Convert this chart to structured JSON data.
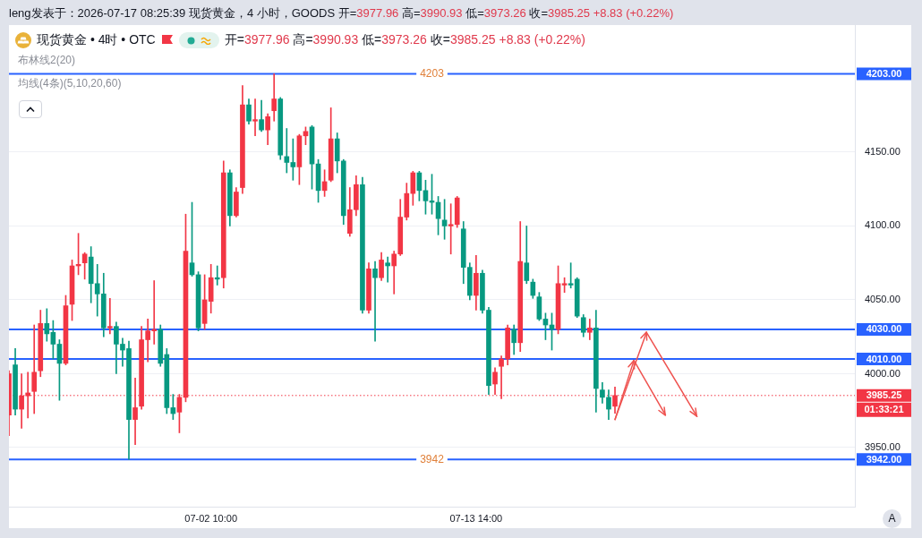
{
  "chart_data": {
    "type": "candlestick",
    "title": "现货黄金 • 4时 • OTC",
    "subtitle": "开=3977.96 高=3990.93 低=3973.26 收=3985.25 +8.83 (+0.22%)",
    "annotations": [
      "leng发表于：2026-07-17 08:25:39 现货黄金，4 小时，GOODS",
      "开=3977.96 高=3990.93 低=3973.26 收=3985.25 +8.83 (+0.22%)",
      "布林线2(20)",
      "均线(4条)(5,10,20,60)",
      "01:33:21",
      "A",
      {
        "text": "4203",
        "y": 4203
      },
      {
        "text": "3942",
        "y": 3942
      }
    ],
    "categories": [
      null,
      null,
      null,
      null,
      null,
      null,
      null,
      null,
      null,
      null,
      null,
      null,
      null,
      null,
      null,
      null,
      null,
      null,
      null,
      null,
      null,
      null,
      null,
      null,
      null,
      null,
      null,
      null,
      null,
      null,
      null,
      null,
      "07-02 10:00",
      null,
      null,
      null,
      null,
      null,
      null,
      null,
      null,
      null,
      null,
      null,
      null,
      null,
      null,
      null,
      null,
      null,
      null,
      null,
      null,
      null,
      null,
      null,
      null,
      null,
      null,
      null,
      null,
      null,
      null,
      null,
      null,
      null,
      null,
      null,
      null,
      null,
      null,
      null,
      null,
      null,
      "07-13 14:00",
      null,
      null,
      null,
      null,
      null,
      null,
      null,
      null,
      null,
      null,
      null,
      null,
      null,
      null,
      null,
      null,
      null,
      null,
      null,
      null,
      null,
      null,
      null,
      null,
      null,
      null,
      null,
      null,
      null,
      null,
      null,
      null,
      null,
      null,
      null,
      null,
      null,
      null,
      null,
      null,
      null,
      null,
      null,
      null,
      null,
      null,
      null,
      null,
      null,
      null,
      null,
      null,
      null,
      null,
      null,
      null,
      null,
      null,
      null,
      null
    ],
    "ohlc": [
      [
        3972,
        4002,
        3958,
        4000
      ],
      [
        4006,
        4017,
        3972,
        3976
      ],
      [
        3976,
        4000,
        3963,
        3985
      ],
      [
        3985,
        4001,
        3970,
        3987
      ],
      [
        3988,
        4033,
        3973,
        4001
      ],
      [
        4002,
        4043,
        3998,
        4034
      ],
      [
        4034,
        4044,
        4022,
        4027
      ],
      [
        4028,
        4036,
        4010,
        4020
      ],
      [
        4020,
        4023,
        3982,
        4007
      ],
      [
        4007,
        4053,
        4006,
        4046
      ],
      [
        4047,
        4077,
        4036,
        4073
      ],
      [
        4073,
        4095,
        4067,
        4074
      ],
      [
        4075,
        4082,
        4064,
        4081
      ],
      [
        4079,
        4086,
        4048,
        4061
      ],
      [
        4061,
        4074,
        4039,
        4054
      ],
      [
        4054,
        4068,
        4025,
        4031
      ],
      [
        4031,
        4051,
        4027,
        4032
      ],
      [
        4032,
        4035,
        4000,
        4020
      ],
      [
        4020,
        4024,
        4005,
        4016
      ],
      [
        4017,
        4022,
        3942,
        3969
      ],
      [
        3969,
        3997,
        3952,
        3977
      ],
      [
        3978,
        4032,
        3976,
        4023
      ],
      [
        4023,
        4037,
        4008,
        4029
      ],
      [
        4029,
        4063,
        4020,
        4030
      ],
      [
        4030,
        4033,
        4005,
        4007
      ],
      [
        4013,
        4017,
        3973,
        3977
      ],
      [
        3977,
        3986,
        3969,
        3973
      ],
      [
        3974,
        3986,
        3960,
        3984
      ],
      [
        3984,
        4108,
        3981,
        4083
      ],
      [
        4075,
        4116,
        4066,
        4067
      ],
      [
        4067,
        4069,
        4029,
        4031
      ],
      [
        4034,
        4067,
        4030,
        4050
      ],
      [
        4049,
        4074,
        4041,
        4065
      ],
      [
        4065,
        4073,
        4060,
        4064
      ],
      [
        4065,
        4144,
        4058,
        4136
      ],
      [
        4136,
        4138,
        4100,
        4107
      ],
      [
        4107,
        4126,
        4106,
        4123
      ],
      [
        4126,
        4195,
        4122,
        4182
      ],
      [
        4182,
        4186,
        4169,
        4171
      ],
      [
        4171,
        4186,
        4161,
        4172
      ],
      [
        4172,
        4185,
        4164,
        4165
      ],
      [
        4165,
        4176,
        4155,
        4174
      ],
      [
        4178,
        4203,
        4171,
        4186
      ],
      [
        4186,
        4187,
        4145,
        4148
      ],
      [
        4147,
        4166,
        4136,
        4143
      ],
      [
        4143,
        4159,
        4131,
        4140
      ],
      [
        4140,
        4162,
        4128,
        4161
      ],
      [
        4161,
        4167,
        4155,
        4164
      ],
      [
        4167,
        4168,
        4125,
        4142
      ],
      [
        4142,
        4145,
        4116,
        4124
      ],
      [
        4124,
        4138,
        4120,
        4130
      ],
      [
        4131,
        4180,
        4130,
        4159
      ],
      [
        4159,
        4163,
        4136,
        4144
      ],
      [
        4144,
        4145,
        4101,
        4107
      ],
      [
        4095,
        4126,
        4093,
        4111
      ],
      [
        4111,
        4134,
        4107,
        4128
      ],
      [
        4128,
        4133,
        4041,
        4043
      ],
      [
        4043,
        4075,
        4041,
        4071
      ],
      [
        4071,
        4076,
        4022,
        4065
      ],
      [
        4065,
        4082,
        4063,
        4077
      ],
      [
        4075,
        4079,
        4062,
        4073
      ],
      [
        4073,
        4083,
        4054,
        4081
      ],
      [
        4081,
        4118,
        4080,
        4106
      ],
      [
        4106,
        4129,
        4104,
        4122
      ],
      [
        4122,
        4137,
        4114,
        4136
      ],
      [
        4136,
        4137,
        4117,
        4124
      ],
      [
        4124,
        4131,
        4108,
        4117
      ],
      [
        4117,
        4135,
        4108,
        4116
      ],
      [
        4116,
        4120,
        4094,
        4105
      ],
      [
        4104,
        4118,
        4091,
        4100
      ],
      [
        4100,
        4115,
        4081,
        4101
      ],
      [
        4101,
        4120,
        4099,
        4119
      ],
      [
        4098,
        4103,
        4061,
        4072
      ],
      [
        4072,
        4075,
        4050,
        4053
      ],
      [
        4053,
        4080,
        4043,
        4068
      ],
      [
        4068,
        4070,
        4041,
        4043
      ],
      [
        4043,
        4045,
        3986,
        3992
      ],
      [
        3993,
        4004,
        3986,
        4001
      ],
      [
        4005,
        4012,
        3983,
        4010
      ],
      [
        4010,
        4033,
        4006,
        4031
      ],
      [
        4030,
        4033,
        4013,
        4021
      ],
      [
        4021,
        4103,
        4015,
        4076
      ],
      [
        4075,
        4100,
        4061,
        4063
      ],
      [
        4062,
        4064,
        4051,
        4053
      ],
      [
        4052,
        4055,
        4036,
        4037
      ],
      [
        4037,
        4041,
        4023,
        4033
      ],
      [
        4033,
        4041,
        4016,
        4030
      ],
      [
        4030,
        4073,
        4027,
        4061
      ],
      [
        4060,
        4065,
        4055,
        4061
      ],
      [
        4061,
        4075,
        4058,
        4060
      ],
      [
        4064,
        4065,
        4038,
        4039
      ],
      [
        4038,
        4040,
        4025,
        4028
      ],
      [
        4028,
        4037,
        4023,
        4031
      ],
      [
        4031,
        4043,
        3974,
        3990
      ],
      [
        3989,
        3994,
        3980,
        3984
      ],
      [
        3984,
        3989,
        3969,
        3976
      ],
      [
        3977.96,
        3990.93,
        3973.26,
        3985.25
      ],
      null,
      null,
      null,
      null,
      null,
      null,
      null,
      null,
      null,
      null,
      null,
      null,
      null,
      null,
      null,
      null,
      null,
      null,
      null,
      null,
      null,
      null,
      null,
      null,
      null,
      null,
      null,
      null,
      null,
      null,
      null,
      null,
      null,
      null,
      null,
      null,
      null,
      null
    ],
    "colors": [
      "#f23645",
      "#089981",
      "#f23645",
      "#f23645",
      "#f23645",
      "#f23645",
      "#089981",
      "#089981",
      "#089981",
      "#f23645",
      "#f23645",
      "#f23645",
      "#f23645",
      "#089981",
      "#089981",
      "#089981",
      "#f23645",
      "#089981",
      "#089981",
      "#089981",
      "#f23645",
      "#f23645",
      "#f23645",
      "#f23645",
      "#089981",
      "#089981",
      "#089981",
      "#f23645",
      "#f23645",
      "#089981",
      "#089981",
      "#f23645",
      "#f23645",
      "#089981",
      "#f23645",
      "#089981",
      "#f23645",
      "#f23645",
      "#089981",
      "#f23645",
      "#089981",
      "#f23645",
      "#f23645",
      "#089981",
      "#089981",
      "#089981",
      "#f23645",
      "#f23645",
      "#089981",
      "#089981",
      "#f23645",
      "#f23645",
      "#089981",
      "#089981",
      "#f23645",
      "#f23645",
      "#089981",
      "#f23645",
      "#089981",
      "#f23645",
      "#089981",
      "#f23645",
      "#f23645",
      "#f23645",
      "#f23645",
      "#089981",
      "#089981",
      "#089981",
      "#089981",
      "#089981",
      "#f23645",
      "#f23645",
      "#089981",
      "#089981",
      "#f23645",
      "#089981",
      "#089981",
      "#f23645",
      "#f23645",
      "#f23645",
      "#089981",
      "#f23645",
      "#089981",
      "#089981",
      "#089981",
      "#089981",
      "#089981",
      "#f23645",
      "#f23645",
      "#089981",
      "#089981",
      "#089981",
      "#f23645",
      "#089981",
      "#089981",
      "#089981",
      "#f23645",
      null,
      null,
      null,
      null,
      null,
      null,
      null,
      null,
      null,
      null,
      null,
      null,
      null,
      null,
      null,
      null,
      null,
      null,
      null,
      null,
      null,
      null,
      null,
      null,
      null,
      null,
      null,
      null,
      null,
      null,
      null,
      null,
      null,
      null,
      null,
      null,
      null,
      null
    ],
    "series": [
      {
        "type": "line",
        "color": "#ef5350",
        "values": [
          null,
          null,
          null,
          null,
          null,
          null,
          null,
          null,
          null,
          null,
          null,
          null,
          null,
          null,
          null,
          null,
          null,
          null,
          null,
          null,
          null,
          null,
          null,
          null,
          null,
          null,
          null,
          null,
          null,
          null,
          null,
          null,
          null,
          null,
          null,
          null,
          null,
          null,
          null,
          null,
          null,
          null,
          null,
          null,
          null,
          null,
          null,
          null,
          null,
          null,
          null,
          null,
          null,
          null,
          null,
          null,
          null,
          null,
          null,
          null,
          null,
          null,
          null,
          null,
          null,
          null,
          null,
          null,
          null,
          null,
          null,
          null,
          null,
          null,
          null,
          null,
          null,
          null,
          null,
          null,
          null,
          null,
          null,
          null,
          null,
          null,
          null,
          null,
          null,
          null,
          null,
          null,
          null,
          null,
          null,
          null,
          3969,
          null,
          null,
          4009,
          null,
          null,
          null,
          null,
          null,
          null,
          null,
          null,
          null,
          null,
          null,
          null,
          null,
          null,
          null,
          null,
          null,
          null,
          null,
          null,
          null,
          null,
          null,
          null,
          null,
          null,
          null,
          null,
          null,
          null,
          null,
          null,
          null,
          null,
          null
        ]
      },
      {
        "type": "line",
        "color": "#ef5350",
        "values": [
          null,
          null,
          null,
          null,
          null,
          null,
          null,
          null,
          null,
          null,
          null,
          null,
          null,
          null,
          null,
          null,
          null,
          null,
          null,
          null,
          null,
          null,
          null,
          null,
          null,
          null,
          null,
          null,
          null,
          null,
          null,
          null,
          null,
          null,
          null,
          null,
          null,
          null,
          null,
          null,
          null,
          null,
          null,
          null,
          null,
          null,
          null,
          null,
          null,
          null,
          null,
          null,
          null,
          null,
          null,
          null,
          null,
          null,
          null,
          null,
          null,
          null,
          null,
          null,
          null,
          null,
          null,
          null,
          null,
          null,
          null,
          null,
          null,
          null,
          null,
          null,
          null,
          null,
          null,
          null,
          null,
          null,
          null,
          null,
          null,
          null,
          null,
          null,
          null,
          null,
          null,
          null,
          null,
          null,
          null,
          null,
          3969,
          null,
          null,
          null,
          null,
          4028,
          null,
          null,
          null,
          null,
          null,
          null,
          null,
          null,
          null,
          null,
          null,
          null,
          null,
          null,
          null,
          null,
          null,
          null,
          null,
          null,
          null,
          null,
          null,
          null,
          null,
          null,
          null,
          null,
          null,
          null,
          null,
          null,
          null
        ]
      },
      {
        "type": "line",
        "color": "#ef5350",
        "values": [
          null,
          null,
          null,
          null,
          null,
          null,
          null,
          null,
          null,
          null,
          null,
          null,
          null,
          null,
          null,
          null,
          null,
          null,
          null,
          null,
          null,
          null,
          null,
          null,
          null,
          null,
          null,
          null,
          null,
          null,
          null,
          null,
          null,
          null,
          null,
          null,
          null,
          null,
          null,
          null,
          null,
          null,
          null,
          null,
          null,
          null,
          null,
          null,
          null,
          null,
          null,
          null,
          null,
          null,
          null,
          null,
          null,
          null,
          null,
          null,
          null,
          null,
          null,
          null,
          null,
          null,
          null,
          null,
          null,
          null,
          null,
          null,
          null,
          null,
          null,
          null,
          null,
          null,
          null,
          null,
          null,
          null,
          null,
          null,
          null,
          null,
          null,
          null,
          null,
          null,
          null,
          null,
          null,
          null,
          null,
          null,
          null,
          null,
          null,
          4009,
          null,
          null,
          null,
          null,
          3972,
          null,
          null,
          null,
          null,
          null,
          null,
          null,
          null,
          null,
          null,
          null,
          null,
          null,
          null,
          null,
          null,
          null,
          null,
          null,
          null,
          null,
          null,
          null,
          null,
          null,
          null,
          null,
          null,
          null,
          null
        ]
      },
      {
        "type": "line",
        "color": "#ef5350",
        "values": [
          null,
          null,
          null,
          null,
          null,
          null,
          null,
          null,
          null,
          null,
          null,
          null,
          null,
          null,
          null,
          null,
          null,
          null,
          null,
          null,
          null,
          null,
          null,
          null,
          null,
          null,
          null,
          null,
          null,
          null,
          null,
          null,
          null,
          null,
          null,
          null,
          null,
          null,
          null,
          null,
          null,
          null,
          null,
          null,
          null,
          null,
          null,
          null,
          null,
          null,
          null,
          null,
          null,
          null,
          null,
          null,
          null,
          null,
          null,
          null,
          null,
          null,
          null,
          null,
          null,
          null,
          null,
          null,
          null,
          null,
          null,
          null,
          null,
          null,
          null,
          null,
          null,
          null,
          null,
          null,
          null,
          null,
          null,
          null,
          null,
          null,
          null,
          null,
          null,
          null,
          null,
          null,
          null,
          null,
          null,
          null,
          null,
          null,
          null,
          null,
          null,
          4028,
          null,
          null,
          null,
          null,
          null,
          null,
          null,
          3971,
          null,
          null,
          null,
          null,
          null,
          null,
          null,
          null,
          null,
          null,
          null,
          null,
          null,
          null,
          null,
          null,
          null,
          null,
          null,
          null,
          null,
          null,
          null,
          null,
          null
        ]
      }
    ],
    "ylim": [
      3910,
      4236
    ],
    "yticks": [
      {
        "value": 3950,
        "label": "3950.00"
      },
      {
        "value": 4000,
        "label": "4000.00"
      },
      {
        "value": 4050,
        "label": "4050.00"
      },
      {
        "value": 4100,
        "label": "4100.00"
      },
      {
        "value": 4150,
        "label": "4150.00"
      }
    ],
    "ref_lines": [
      {
        "axis": "y",
        "value": 4203,
        "label": "4203.00",
        "color": "#2962ff"
      },
      {
        "axis": "y",
        "value": 4030,
        "label": "4030.00",
        "color": "#2962ff"
      },
      {
        "axis": "y",
        "value": 4010,
        "label": "4010.00",
        "color": "#2962ff"
      },
      {
        "axis": "y",
        "value": 3942,
        "label": "3942.00",
        "color": "#2962ff"
      },
      {
        "axis": "y",
        "value": 3985.25,
        "label": "3985.25",
        "color": "#f23645",
        "line_style": "dotted"
      }
    ],
    "grid": "y",
    "legend": false
  }
}
